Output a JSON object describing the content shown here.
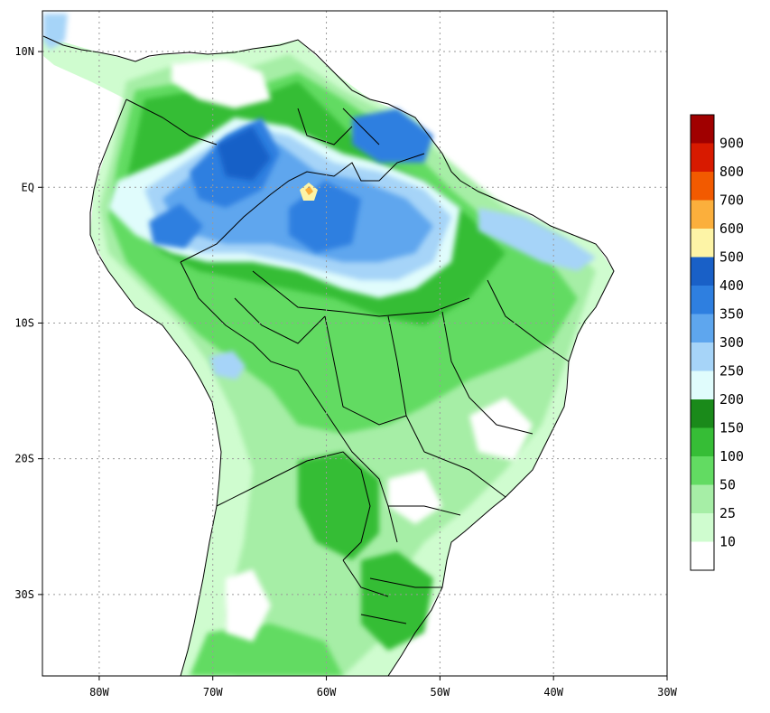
{
  "map": {
    "lon_range": [
      -85,
      -30
    ],
    "lat_range": [
      -36,
      13
    ],
    "lon_ticks": [
      {
        "value": -80,
        "label": "80W"
      },
      {
        "value": -70,
        "label": "70W"
      },
      {
        "value": -60,
        "label": "60W"
      },
      {
        "value": -50,
        "label": "50W"
      },
      {
        "value": -40,
        "label": "40W"
      },
      {
        "value": -30,
        "label": "30W"
      }
    ],
    "lat_ticks": [
      {
        "value": 10,
        "label": "10N"
      },
      {
        "value": 0,
        "label": "EQ"
      },
      {
        "value": -10,
        "label": "10S"
      },
      {
        "value": -20,
        "label": "20S"
      },
      {
        "value": -30,
        "label": "30S"
      }
    ],
    "grid": "dotted"
  },
  "legend": {
    "levels": [
      {
        "label": "",
        "color": "#a00000"
      },
      {
        "label": "900",
        "color": "#d81a00"
      },
      {
        "label": "800",
        "color": "#f25a00"
      },
      {
        "label": "700",
        "color": "#fbaf3c"
      },
      {
        "label": "600",
        "color": "#fdf4a6"
      },
      {
        "label": "500",
        "color": "#1960c7"
      },
      {
        "label": "400",
        "color": "#2e7fe0"
      },
      {
        "label": "350",
        "color": "#5ea6ee"
      },
      {
        "label": "300",
        "color": "#a6d4f8"
      },
      {
        "label": "250",
        "color": "#e0fcfc"
      },
      {
        "label": "200",
        "color": "#1a8a1a"
      },
      {
        "label": "150",
        "color": "#36bd36"
      },
      {
        "label": "100",
        "color": "#62db62"
      },
      {
        "label": "50",
        "color": "#a6eea6"
      },
      {
        "label": "25",
        "color": "#cffccf"
      },
      {
        "label": "10",
        "color": "#ffffff"
      }
    ]
  }
}
